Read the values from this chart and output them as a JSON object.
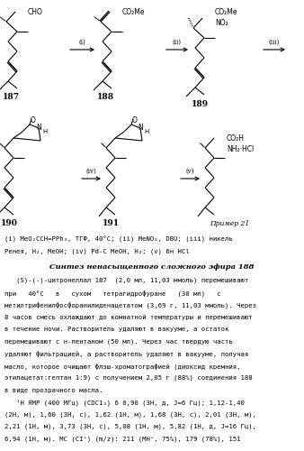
{
  "background_color": "#ffffff",
  "reagents_line1": "(i) MeO₂CCH=PPh₃, ТГФ, 40°C; (ii) MeNO₂, DBU; (iii) никель",
  "reagents_line2": "Ренея, H₂, MeOH; (iv) Pd-C MeOH, H₂; (v) 6н HCl",
  "section_title": "Синтез ненасыщенного сложного эфира 188",
  "body_text": [
    "   (S)-(-)-цитронеллал 187  (2,0 мл, 11,03 ммоль) перемешивают",
    "при   40°C   в   сухом   тетрагидрофуране   (30 мл)   с",
    "метилтрифенилфосфоранилиденацетатом (3,69 г, 11,03 ммоль). Через",
    "8 часов смесь охлаждают до комнатной температуры и перемешивают",
    "в течение ночи. Растворитель удаляют в вакууме, а остаток",
    "перемешивают с н-пентаном (50 мл). Через час твердую часть",
    "удаляют фильтрацией, а растворитель удаляют в вакууме, получая",
    "масло, которое очищают флэш-хроматографией (диоксид кремния,",
    "этилацетат:гептан 1:9) с получением 2,05 г (88%) соединения 188",
    "в виде прозрачного масла.",
    "   ¹Н ЯМР (400 МГц) (CDC1₃) δ 0,90 (3H, д, J=6 Гц); 1,12-1,40",
    "(2H, м), 1,60 (3H, с), 1,62 (1H, м), 1,68 (3H, с), 2,01 (3H, м),",
    "2,21 (1H, м), 3,73 (3H, с), 5,08 (1H, м), 5,82 (1H, д, J=16 Гц),",
    "6,94 (1H, м). МС (CI⁺) (m/z): 211 (МН⁺, 75%), 179 (78%), 151"
  ]
}
